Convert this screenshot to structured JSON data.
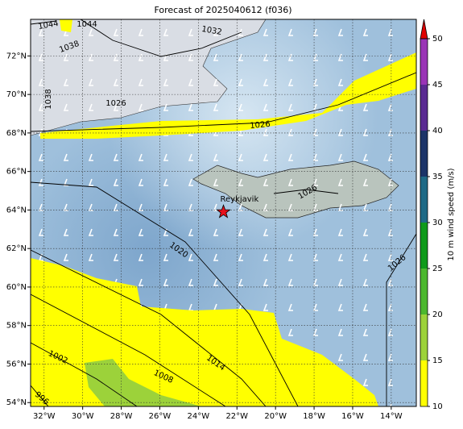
{
  "title": "Forecast of 2025040612 (f036)",
  "map": {
    "lonlim": [
      -32.7,
      -12.7
    ],
    "latlim": [
      53.8,
      73.9
    ],
    "lonticks": [
      {
        "value": -32,
        "label": "32°W"
      },
      {
        "value": -30,
        "label": "30°W"
      },
      {
        "value": -28,
        "label": "28°W"
      },
      {
        "value": -26,
        "label": "26°W"
      },
      {
        "value": -24,
        "label": "24°W"
      },
      {
        "value": -22,
        "label": "22°W"
      },
      {
        "value": -20,
        "label": "20°W"
      },
      {
        "value": -18,
        "label": "18°W"
      },
      {
        "value": -16,
        "label": "16°W"
      },
      {
        "value": -14,
        "label": "14°W"
      }
    ],
    "latticks": [
      {
        "value": 54,
        "label": "54°N"
      },
      {
        "value": 56,
        "label": "56°N"
      },
      {
        "value": 58,
        "label": "58°N"
      },
      {
        "value": 60,
        "label": "60°N"
      },
      {
        "value": 62,
        "label": "62°N"
      },
      {
        "value": 64,
        "label": "64°N"
      },
      {
        "value": 66,
        "label": "66°N"
      },
      {
        "value": 68,
        "label": "68°N"
      },
      {
        "value": 70,
        "label": "70°N"
      },
      {
        "value": 72,
        "label": "72°N"
      }
    ],
    "grid": true,
    "isobar_labels": [
      1044,
      1044,
      1038,
      1038,
      1026,
      1032,
      1026,
      1026,
      1020,
      1014,
      1008,
      1002,
      996,
      1026
    ],
    "marker": {
      "label": "Reykjavik",
      "lon": -22.7,
      "lat": 63.9,
      "color": "#e8101a"
    }
  },
  "colorbar": {
    "label": "10 m wind speed (m/s)",
    "ticks": [
      10,
      15,
      20,
      25,
      30,
      35,
      40,
      45,
      50
    ],
    "colors": [
      "#ffff00",
      "#9cd23a",
      "#4cb82e",
      "#0f9a1a",
      "#1f6a86",
      "#1c3468",
      "#5a2a92",
      "#9a34b6"
    ],
    "extend_color": "#e00000"
  }
}
